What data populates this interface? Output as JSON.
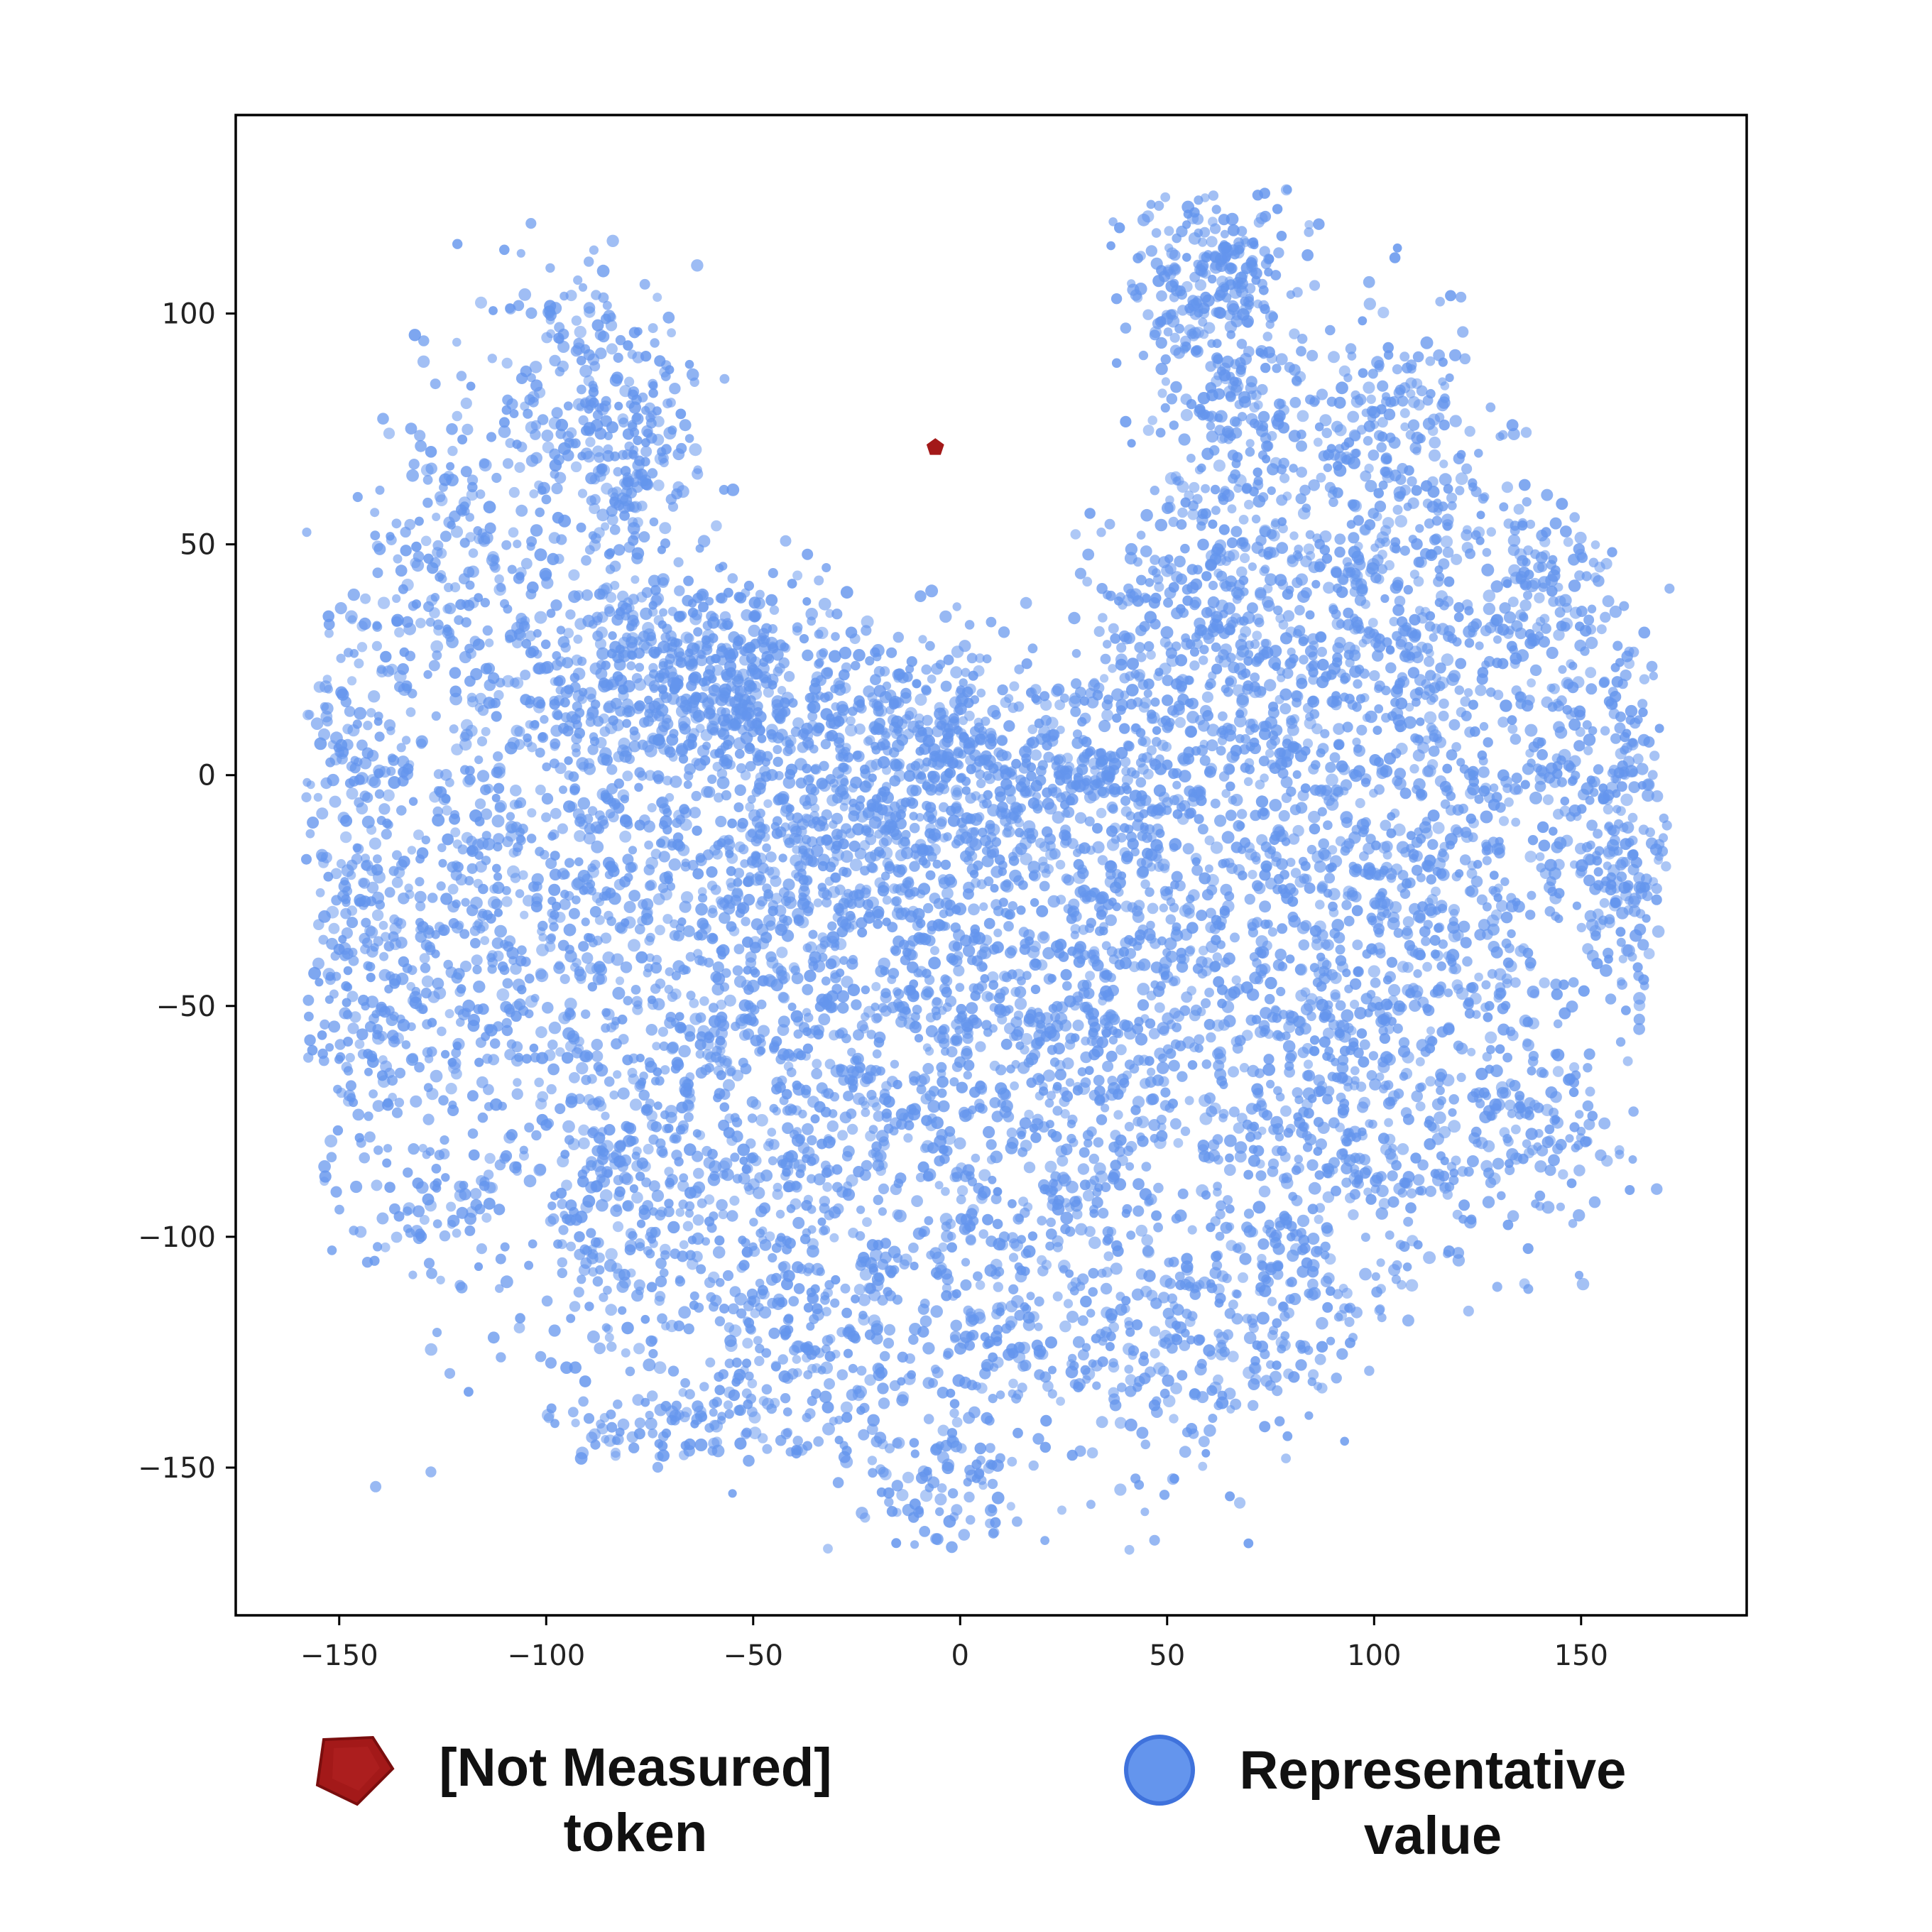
{
  "chart_data": {
    "type": "scatter",
    "title": "",
    "xlabel": "",
    "ylabel": "",
    "xlim": [
      -175,
      190
    ],
    "ylim": [
      -182,
      143
    ],
    "xticks": [
      -150,
      -100,
      -50,
      0,
      50,
      100,
      150
    ],
    "yticks": [
      100,
      50,
      0,
      -50,
      -100,
      -150
    ],
    "xtick_labels": [
      "−150",
      "−100",
      "−50",
      "0",
      "50",
      "100",
      "150"
    ],
    "ytick_labels": [
      "100",
      "50",
      "0",
      "−50",
      "−100",
      "−150"
    ],
    "grid": false,
    "legend_position": "bottom",
    "series": [
      {
        "name": "Representative value",
        "label_lines": [
          "Representative",
          "value"
        ],
        "marker": "circle",
        "color": "#6495ED",
        "approx_count": 12000,
        "note": "dense cloud of points; cluster centers given in data units",
        "clusters": [
          {
            "center": [
              -90,
              80
            ],
            "spread": [
              13,
              18
            ],
            "weight": 5
          },
          {
            "center": [
              -78,
              70
            ],
            "spread": [
              8,
              15
            ],
            "weight": 2
          },
          {
            "center": [
              -125,
              50
            ],
            "spread": [
              10,
              15
            ],
            "weight": 3
          },
          {
            "center": [
              -145,
              5
            ],
            "spread": [
              8,
              18
            ],
            "weight": 3
          },
          {
            "center": [
              -145,
              -50
            ],
            "spread": [
              8,
              22
            ],
            "weight": 4
          },
          {
            "center": [
              -120,
              -30
            ],
            "spread": [
              13,
              30
            ],
            "weight": 5
          },
          {
            "center": [
              -125,
              -95
            ],
            "spread": [
              8,
              8
            ],
            "weight": 1
          },
          {
            "center": [
              -100,
              10
            ],
            "spread": [
              15,
              25
            ],
            "weight": 5
          },
          {
            "center": [
              -95,
              -60
            ],
            "spread": [
              18,
              30
            ],
            "weight": 6
          },
          {
            "center": [
              -75,
              20
            ],
            "spread": [
              15,
              15
            ],
            "weight": 4
          },
          {
            "center": [
              -60,
              25
            ],
            "spread": [
              12,
              10
            ],
            "weight": 4
          },
          {
            "center": [
              -40,
              15
            ],
            "spread": [
              15,
              10
            ],
            "weight": 4
          },
          {
            "center": [
              -70,
              -40
            ],
            "spread": [
              15,
              30
            ],
            "weight": 6
          },
          {
            "center": [
              -75,
              -100
            ],
            "spread": [
              15,
              15
            ],
            "weight": 4
          },
          {
            "center": [
              -70,
              -140
            ],
            "spread": [
              15,
              5
            ],
            "weight": 2
          },
          {
            "center": [
              -45,
              -20
            ],
            "spread": [
              15,
              20
            ],
            "weight": 6
          },
          {
            "center": [
              -40,
              -80
            ],
            "spread": [
              15,
              25
            ],
            "weight": 6
          },
          {
            "center": [
              -40,
              -125
            ],
            "spread": [
              12,
              12
            ],
            "weight": 3
          },
          {
            "center": [
              -20,
              -10
            ],
            "spread": [
              15,
              15
            ],
            "weight": 5
          },
          {
            "center": [
              -15,
              -55
            ],
            "spread": [
              15,
              25
            ],
            "weight": 6
          },
          {
            "center": [
              -10,
              -110
            ],
            "spread": [
              15,
              20
            ],
            "weight": 4
          },
          {
            "center": [
              -5,
              -155
            ],
            "spread": [
              12,
              8
            ],
            "weight": 2
          },
          {
            "center": [
              -5,
              10
            ],
            "spread": [
              10,
              10
            ],
            "weight": 3
          },
          {
            "center": [
              15,
              0
            ],
            "spread": [
              15,
              12
            ],
            "weight": 4
          },
          {
            "center": [
              15,
              -40
            ],
            "spread": [
              15,
              20
            ],
            "weight": 6
          },
          {
            "center": [
              20,
              -100
            ],
            "spread": [
              15,
              25
            ],
            "weight": 5
          },
          {
            "center": [
              40,
              0
            ],
            "spread": [
              15,
              15
            ],
            "weight": 5
          },
          {
            "center": [
              40,
              -50
            ],
            "spread": [
              15,
              25
            ],
            "weight": 6
          },
          {
            "center": [
              50,
              -125
            ],
            "spread": [
              15,
              15
            ],
            "weight": 4
          },
          {
            "center": [
              60,
              35
            ],
            "spread": [
              15,
              15
            ],
            "weight": 5
          },
          {
            "center": [
              60,
              110
            ],
            "spread": [
              12,
              10
            ],
            "weight": 4
          },
          {
            "center": [
              65,
              90
            ],
            "spread": [
              10,
              12
            ],
            "weight": 3
          },
          {
            "center": [
              65,
              65
            ],
            "spread": [
              10,
              12
            ],
            "weight": 2
          },
          {
            "center": [
              80,
              10
            ],
            "spread": [
              20,
              25
            ],
            "weight": 6
          },
          {
            "center": [
              75,
              -60
            ],
            "spread": [
              15,
              25
            ],
            "weight": 6
          },
          {
            "center": [
              80,
              -110
            ],
            "spread": [
              12,
              15
            ],
            "weight": 3
          },
          {
            "center": [
              100,
              40
            ],
            "spread": [
              15,
              20
            ],
            "weight": 5
          },
          {
            "center": [
              105,
              75
            ],
            "spread": [
              12,
              12
            ],
            "weight": 3
          },
          {
            "center": [
              100,
              -30
            ],
            "spread": [
              15,
              20
            ],
            "weight": 5
          },
          {
            "center": [
              105,
              -80
            ],
            "spread": [
              15,
              15
            ],
            "weight": 4
          },
          {
            "center": [
              125,
              20
            ],
            "spread": [
              15,
              20
            ],
            "weight": 4
          },
          {
            "center": [
              125,
              -40
            ],
            "spread": [
              15,
              25
            ],
            "weight": 5
          },
          {
            "center": [
              140,
              -80
            ],
            "spread": [
              10,
              10
            ],
            "weight": 2
          },
          {
            "center": [
              155,
              -5
            ],
            "spread": [
              10,
              20
            ],
            "weight": 4
          },
          {
            "center": [
              160,
              -25
            ],
            "spread": [
              6,
              15
            ],
            "weight": 2
          },
          {
            "center": [
              140,
              40
            ],
            "spread": [
              8,
              10
            ],
            "weight": 2
          }
        ]
      },
      {
        "name": "[Not Measured] token",
        "label_lines": [
          "[Not Measured]",
          "token"
        ],
        "marker": "pentagon",
        "color": "#A31919",
        "points": [
          [
            -6,
            71
          ]
        ]
      }
    ]
  }
}
